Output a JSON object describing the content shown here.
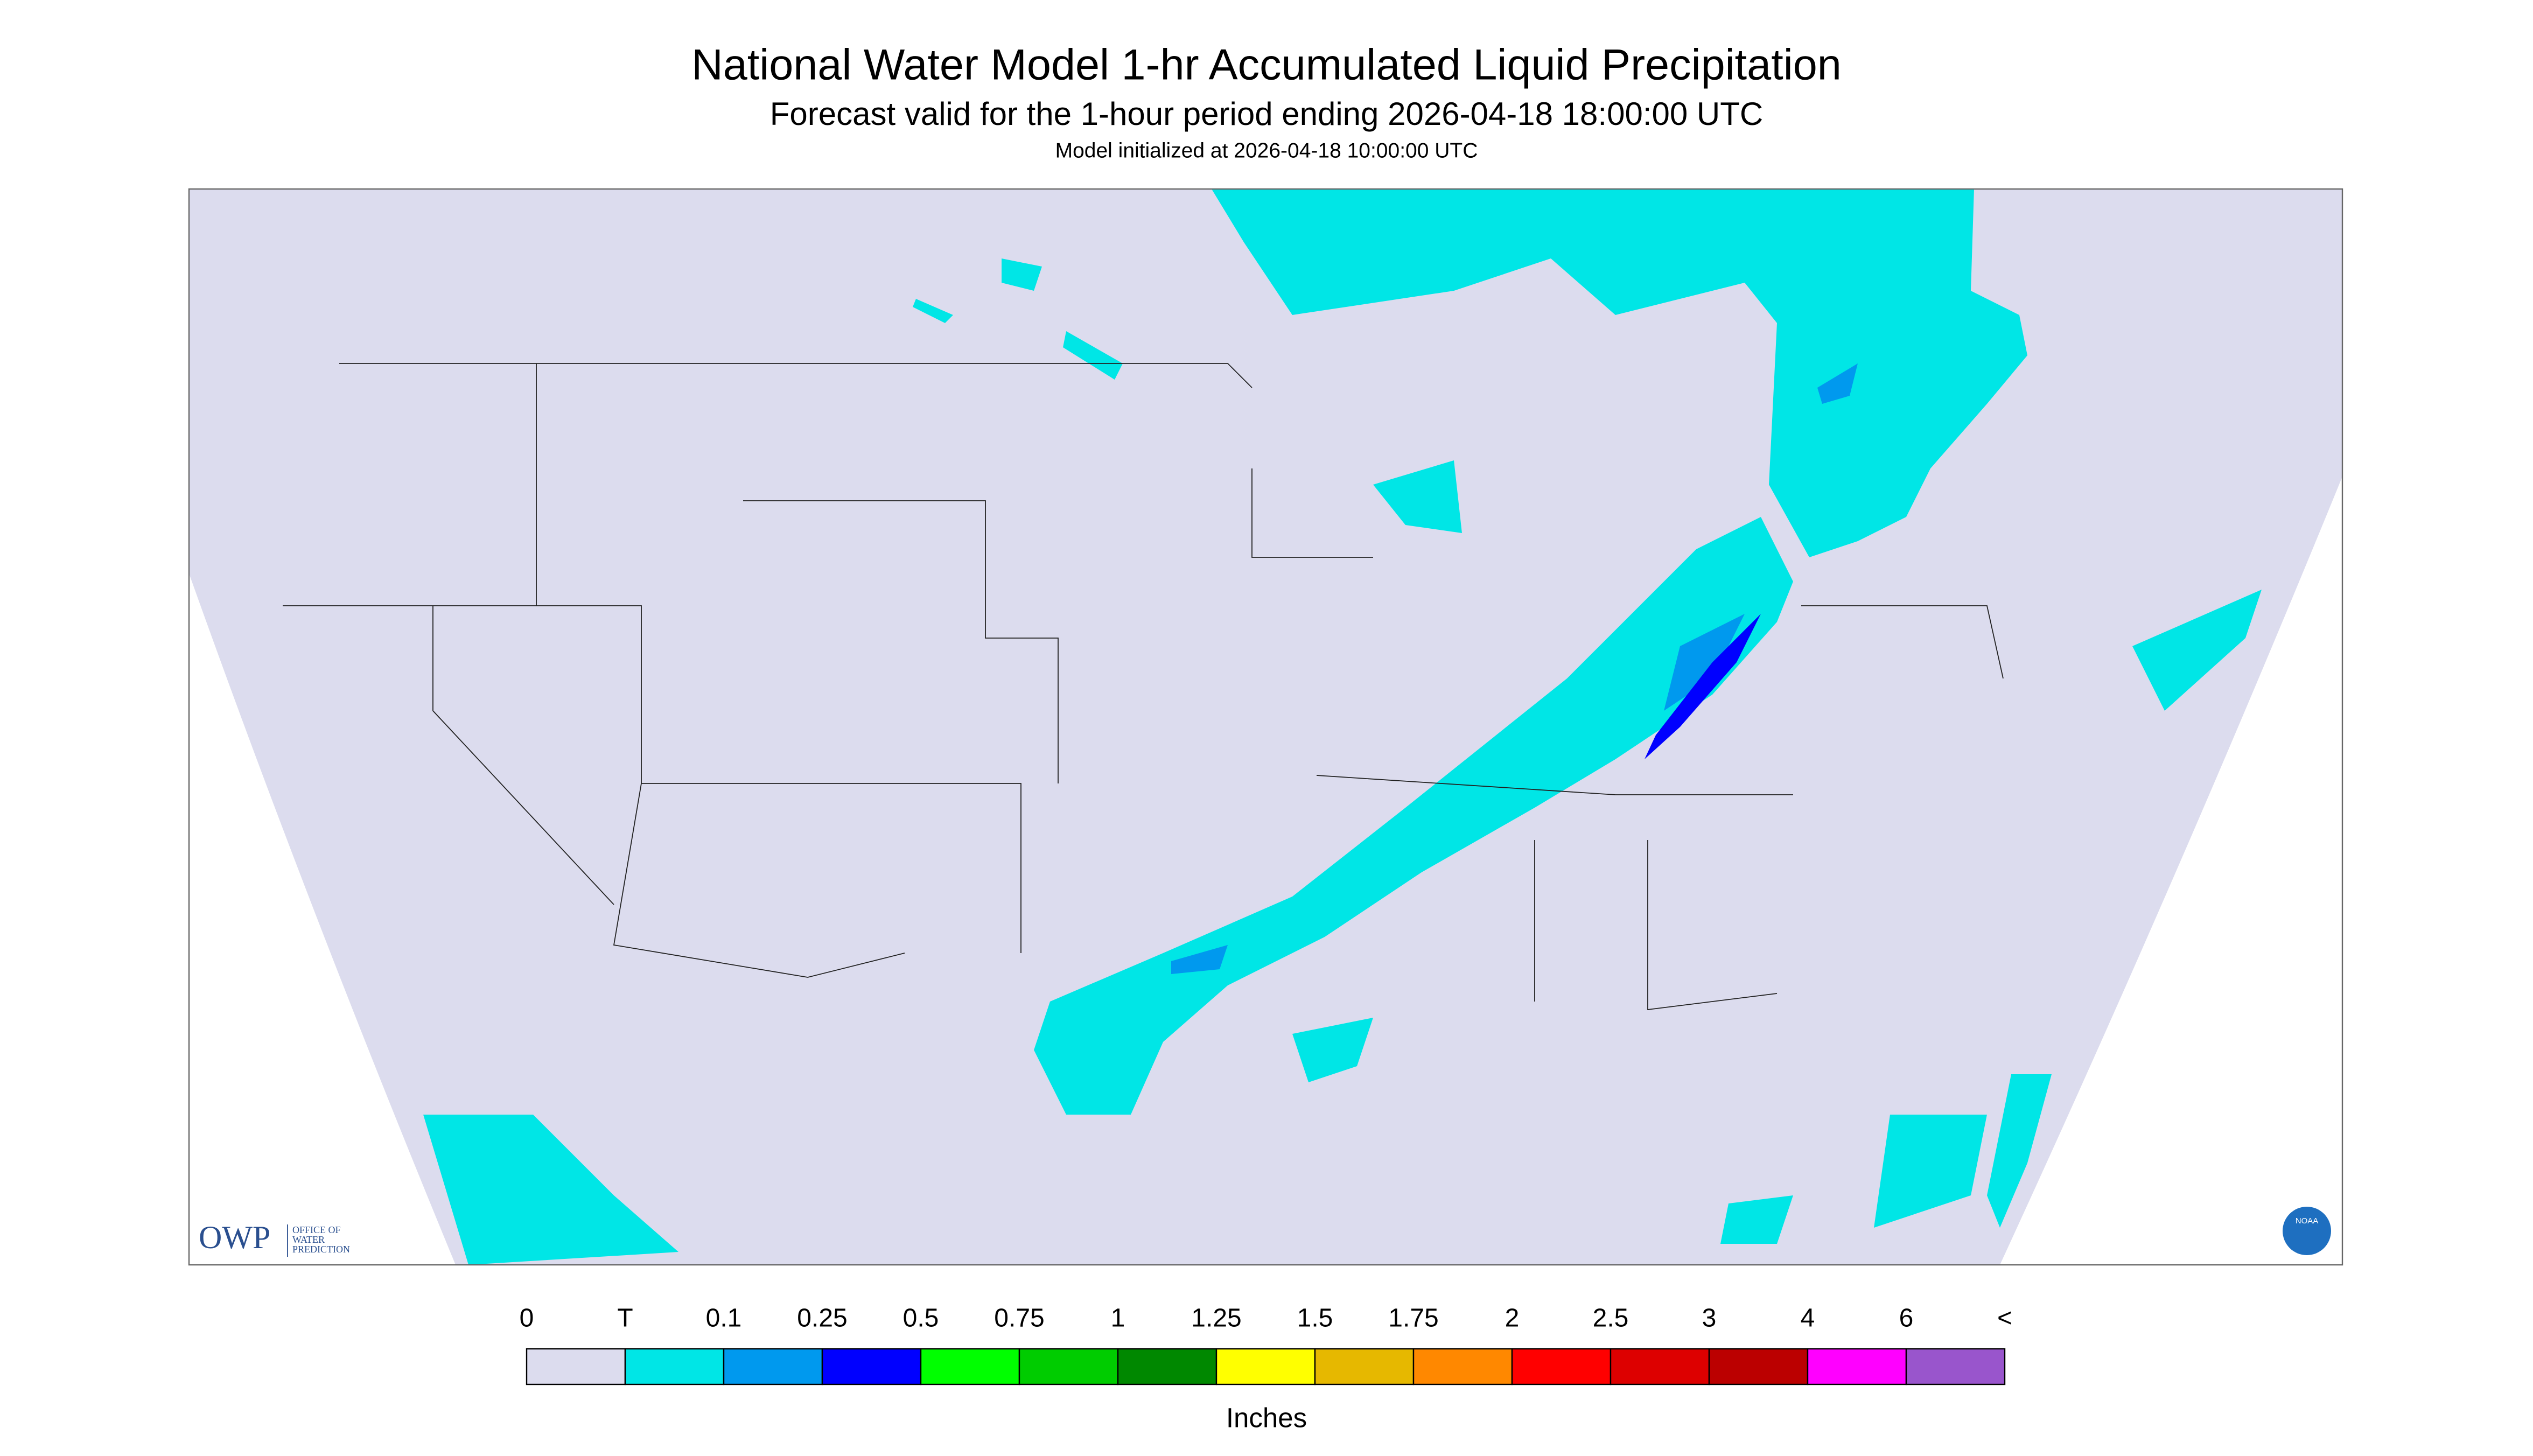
{
  "header": {
    "title": "National Water Model 1-hr Accumulated Liquid Precipitation",
    "subtitle": "Forecast valid for the 1-hour period ending 2026-04-18 18:00:00 UTC",
    "init": "Model initialized at 2026-04-18 10:00:00 UTC"
  },
  "legend": {
    "labels": [
      "0",
      "T",
      "0.1",
      "0.25",
      "0.5",
      "0.75",
      "1",
      "1.25",
      "1.5",
      "1.75",
      "2",
      "2.5",
      "3",
      "4",
      "6",
      "<"
    ],
    "colors": [
      "#dcdcee",
      "#00e6e6",
      "#0099ee",
      "#0000ff",
      "#00ff00",
      "#00cc00",
      "#008800",
      "#ffff00",
      "#e6b800",
      "#ff8800",
      "#ff0000",
      "#dd0000",
      "#bb0000",
      "#ff00ff",
      "#9955cc"
    ],
    "unit": "Inches"
  },
  "logos": {
    "owp": "OWP",
    "owp_name": [
      "OFFICE OF",
      "WATER",
      "PREDICTION"
    ],
    "noaa": "NOAA"
  }
}
